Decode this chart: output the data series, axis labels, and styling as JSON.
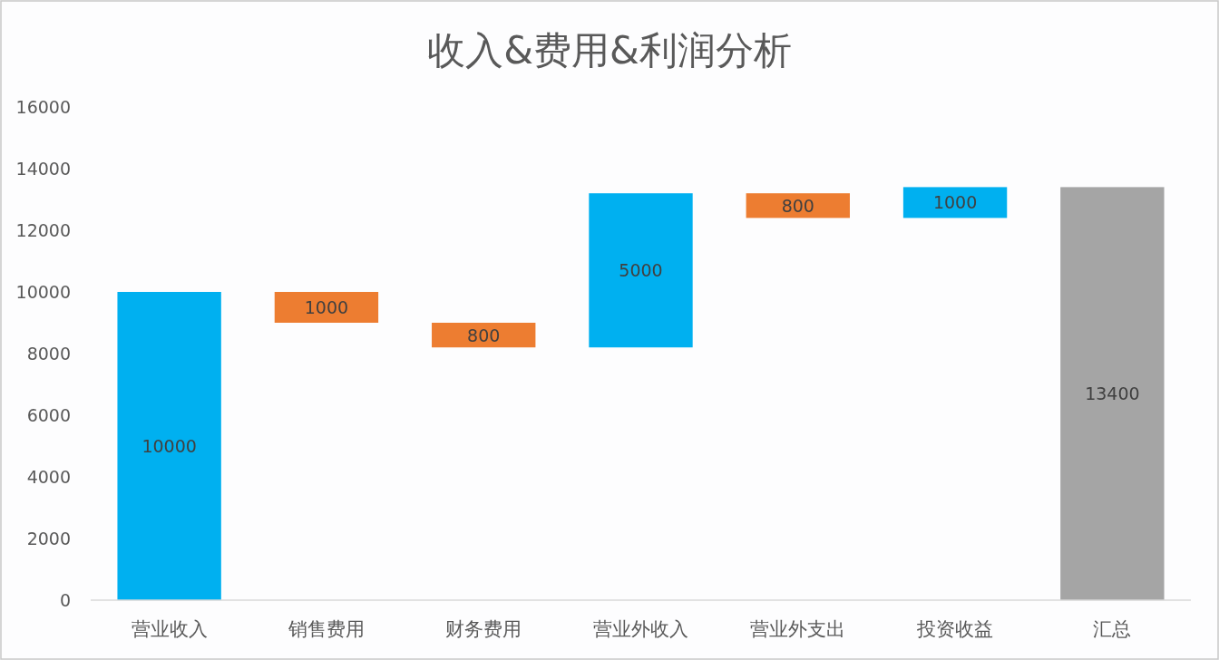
{
  "chart_data": {
    "type": "bar",
    "title": "收入&费用&利润分析",
    "categories": [
      "营业收入",
      "销售费用",
      "财务费用",
      "营业外收入",
      "营业外支出",
      "投资收益",
      "汇总"
    ],
    "values": [
      10000,
      1000,
      800,
      5000,
      800,
      1000,
      13400
    ],
    "base": [
      0,
      9000,
      8200,
      8200,
      12400,
      12400,
      0
    ],
    "colors": [
      "#00b0f0",
      "#ed7d31",
      "#ed7d31",
      "#00b0f0",
      "#ed7d31",
      "#00b0f0",
      "#a5a5a5"
    ],
    "ylim": [
      0,
      16000
    ],
    "yticks": [
      0,
      2000,
      4000,
      6000,
      8000,
      10000,
      12000,
      14000,
      16000
    ],
    "data_labels": true
  }
}
